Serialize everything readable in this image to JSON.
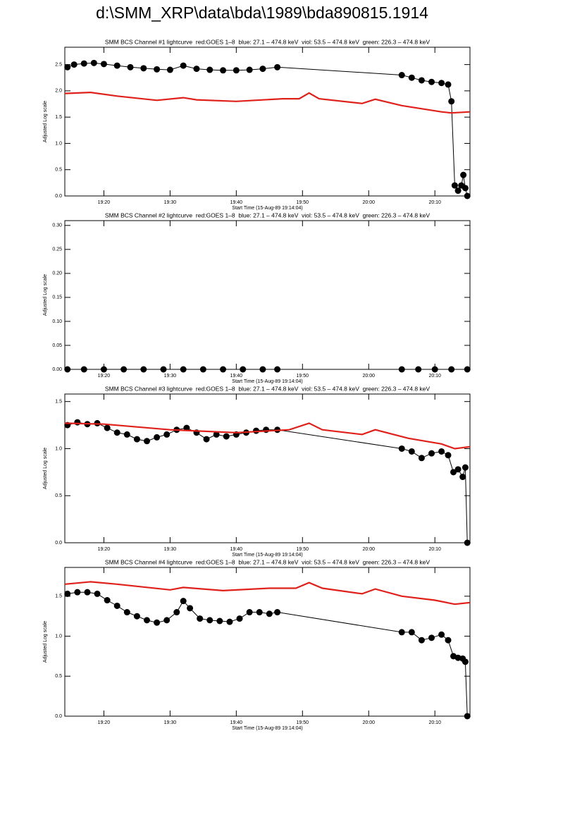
{
  "title": "d:\\SMM_XRP\\data\\bda\\1989\\bda890815.1914",
  "chart_data": [
    {
      "type": "line",
      "title": "SMM BCS Channel #1 lightcurve  red:GOES 1–8  blue: 27.1 – 474.8 keV  viol: 53.5 – 474.8 keV  green: 226.3 – 474.8 keV",
      "xlabel": "Start Time (15-Aug-89 19:14:04)",
      "ylabel": "Adjusted Log scale",
      "xlim": [
        14.1,
        75.3
      ],
      "ylim": [
        0,
        2.83
      ],
      "xticks": [
        {
          "value": 20,
          "label": "19:20"
        },
        {
          "value": 30,
          "label": "19:30"
        },
        {
          "value": 40,
          "label": "19:40"
        },
        {
          "value": 50,
          "label": "19:50"
        },
        {
          "value": 60,
          "label": "20:00"
        },
        {
          "value": 70,
          "label": "20:10"
        }
      ],
      "yticks": [
        {
          "value": 0,
          "label": "0.0"
        },
        0.5,
        {
          "value": 1,
          "label": "1.0"
        },
        1.5,
        {
          "value": 2,
          "label": "2.0"
        },
        2.5
      ],
      "series": [
        {
          "color": "#000000",
          "markers": true,
          "x": [
            14.5,
            15.5,
            17,
            18.5,
            20,
            22,
            24,
            26,
            28,
            30,
            32,
            34,
            36,
            38,
            40,
            42,
            44,
            46.2,
            65,
            66.5,
            68,
            69.5,
            71,
            72,
            72.5,
            73,
            73.5,
            74,
            74.3,
            74.6,
            74.9
          ],
          "values": [
            2.45,
            2.5,
            2.52,
            2.53,
            2.51,
            2.48,
            2.45,
            2.43,
            2.41,
            2.4,
            2.48,
            2.42,
            2.4,
            2.39,
            2.39,
            2.4,
            2.42,
            2.45,
            2.3,
            2.25,
            2.2,
            2.17,
            2.15,
            2.12,
            1.8,
            0.2,
            0.1,
            0.2,
            0.4,
            0.15,
            0.0
          ]
        },
        {
          "color": "#e0201a",
          "markers": false,
          "x": [
            14.1,
            18,
            22,
            28,
            32,
            34,
            40,
            47,
            49.5,
            51,
            52.5,
            59,
            61,
            65,
            71,
            72.5,
            75.3
          ],
          "values": [
            1.95,
            1.97,
            1.9,
            1.82,
            1.87,
            1.83,
            1.8,
            1.85,
            1.85,
            1.96,
            1.85,
            1.76,
            1.84,
            1.72,
            1.6,
            1.58,
            1.6
          ]
        }
      ]
    },
    {
      "type": "line",
      "title": "SMM BCS Channel #2 lightcurve  red:GOES 1–8  blue: 27.1 – 474.8 keV  viol: 53.5 – 474.8 keV  green: 226.3 – 474.8 keV",
      "xlabel": "Start Time (15-Aug-89 19:14:04)",
      "ylabel": "Adjusted Log scale",
      "xlim": [
        14.1,
        75.3
      ],
      "ylim": [
        0,
        0.31
      ],
      "xticks": [
        {
          "value": 20,
          "label": "19:20"
        },
        {
          "value": 30,
          "label": "19:30"
        },
        {
          "value": 40,
          "label": "19:40"
        },
        {
          "value": 50,
          "label": "19:50"
        },
        {
          "value": 60,
          "label": "20:00"
        },
        {
          "value": 70,
          "label": "20:10"
        }
      ],
      "yticks": [
        {
          "value": 0,
          "label": "0.00"
        },
        0.05,
        {
          "value": 0.1,
          "label": "0.10"
        },
        0.15,
        {
          "value": 0.2,
          "label": "0.20"
        },
        0.25,
        {
          "value": 0.3,
          "label": "0.30"
        }
      ],
      "series": [
        {
          "color": "#000000",
          "markers": true,
          "x": [
            14.5,
            17,
            20,
            23,
            26,
            29,
            32,
            35,
            38,
            41,
            44,
            46.2,
            65,
            67.5,
            70,
            72.5,
            74.9
          ],
          "values": [
            0,
            0,
            0,
            0,
            0,
            0,
            0,
            0,
            0,
            0,
            0,
            0,
            0,
            0,
            0,
            0,
            0
          ]
        }
      ]
    },
    {
      "type": "line",
      "title": "SMM BCS Channel #3 lightcurve  red:GOES 1–8  blue: 27.1 – 474.8 keV  viol: 53.5 – 474.8 keV  green: 226.3 – 474.8 keV",
      "xlabel": "Start Time (15-Aug-89 19:14:04)",
      "ylabel": "Adjusted Log scale",
      "xlim": [
        14.1,
        75.3
      ],
      "ylim": [
        0,
        1.58
      ],
      "xticks": [
        {
          "value": 20,
          "label": "19:20"
        },
        {
          "value": 30,
          "label": "19:30"
        },
        {
          "value": 40,
          "label": "19:40"
        },
        {
          "value": 50,
          "label": "19:50"
        },
        {
          "value": 60,
          "label": "20:00"
        },
        {
          "value": 70,
          "label": "20:10"
        }
      ],
      "yticks": [
        {
          "value": 0,
          "label": "0.0"
        },
        0.5,
        {
          "value": 1,
          "label": "1.0"
        },
        1.5
      ],
      "series": [
        {
          "color": "#000000",
          "markers": true,
          "x": [
            14.5,
            16,
            17.5,
            19,
            20.5,
            22,
            23.5,
            25,
            26.5,
            28,
            29.5,
            31,
            32.5,
            34,
            35.5,
            37,
            38.5,
            40,
            41.5,
            43,
            44.5,
            46.2,
            65,
            66.5,
            68,
            69.5,
            71,
            72,
            72.8,
            73.5,
            74.2,
            74.6,
            74.9
          ],
          "values": [
            1.25,
            1.28,
            1.26,
            1.27,
            1.22,
            1.17,
            1.15,
            1.1,
            1.08,
            1.12,
            1.15,
            1.2,
            1.22,
            1.17,
            1.1,
            1.15,
            1.13,
            1.15,
            1.17,
            1.19,
            1.2,
            1.2,
            1.0,
            0.97,
            0.9,
            0.95,
            0.97,
            0.93,
            0.75,
            0.78,
            0.7,
            0.8,
            0.0
          ]
        },
        {
          "color": "#e0201a",
          "markers": false,
          "x": [
            14.1,
            20,
            30,
            40,
            48,
            51,
            53,
            59,
            61,
            66,
            71,
            73,
            75.3
          ],
          "values": [
            1.27,
            1.26,
            1.2,
            1.17,
            1.2,
            1.27,
            1.2,
            1.15,
            1.2,
            1.11,
            1.05,
            1.0,
            1.02
          ]
        }
      ]
    },
    {
      "type": "line",
      "title": "SMM BCS Channel #4 lightcurve  red:GOES 1–8  blue: 27.1 – 474.8 keV  viol: 53.5 – 474.8 keV  green: 226.3 – 474.8 keV",
      "xlabel": "Start Time (15-Aug-89 19:14:04)",
      "ylabel": "Adjusted Log scale",
      "xlim": [
        14.1,
        75.3
      ],
      "ylim": [
        0,
        1.86
      ],
      "xticks": [
        {
          "value": 20,
          "label": "19:20"
        },
        {
          "value": 30,
          "label": "19:30"
        },
        {
          "value": 40,
          "label": "19:40"
        },
        {
          "value": 50,
          "label": "19:50"
        },
        {
          "value": 60,
          "label": "20:00"
        },
        {
          "value": 70,
          "label": "20:10"
        }
      ],
      "yticks": [
        {
          "value": 0,
          "label": "0.0"
        },
        0.5,
        {
          "value": 1,
          "label": "1.0"
        },
        1.5
      ],
      "series": [
        {
          "color": "#000000",
          "markers": true,
          "x": [
            14.5,
            16,
            17.5,
            19,
            20.5,
            22,
            23.5,
            25,
            26.5,
            28,
            29.5,
            31,
            32,
            33,
            34.5,
            36,
            37.5,
            39,
            40.5,
            42,
            43.5,
            45,
            46.2,
            65,
            66.5,
            68,
            69.5,
            71,
            72,
            72.8,
            73.5,
            74.2,
            74.6,
            74.9
          ],
          "values": [
            1.53,
            1.55,
            1.55,
            1.53,
            1.45,
            1.38,
            1.3,
            1.25,
            1.2,
            1.17,
            1.2,
            1.3,
            1.44,
            1.35,
            1.22,
            1.2,
            1.19,
            1.18,
            1.22,
            1.3,
            1.3,
            1.28,
            1.3,
            1.05,
            1.05,
            0.95,
            0.98,
            1.02,
            0.95,
            0.75,
            0.73,
            0.72,
            0.68,
            0.0
          ]
        },
        {
          "color": "#e0201a",
          "markers": false,
          "x": [
            14.1,
            18,
            22,
            30,
            32,
            38,
            45,
            49,
            51,
            53,
            59,
            61,
            65,
            70,
            73,
            75.3
          ],
          "values": [
            1.65,
            1.68,
            1.65,
            1.58,
            1.61,
            1.57,
            1.6,
            1.6,
            1.67,
            1.6,
            1.53,
            1.59,
            1.5,
            1.45,
            1.4,
            1.42
          ]
        }
      ]
    }
  ]
}
